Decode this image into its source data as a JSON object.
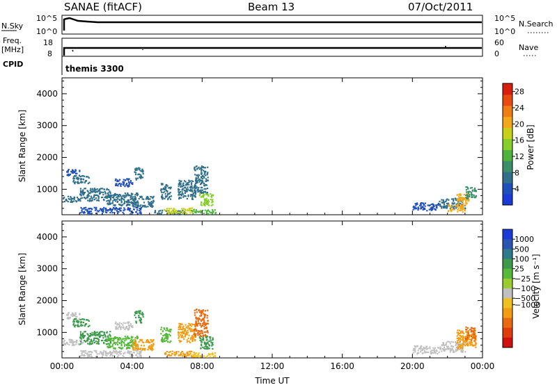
{
  "header": {
    "station": "SANAE (fitACF)",
    "beam": "Beam 13",
    "date": "07/Oct/2011"
  },
  "panels": {
    "nsky": {
      "left_label": "N.Sky",
      "right_label": "N.Search",
      "ticks_left": [
        "10^5",
        "10^0"
      ],
      "ticks_right": [
        "10^5",
        "10^0"
      ]
    },
    "freq": {
      "left_label_1": "Freq.",
      "left_label_2": "[MHz]",
      "right_label": "Nave",
      "ticks_left": [
        "18",
        "8"
      ],
      "ticks_right": [
        "60",
        "0"
      ]
    },
    "cpid": {
      "label": "CPID",
      "value": "themis 3300"
    }
  },
  "colors": {
    "power": [
      "#1a3bd6",
      "#1f4fb8",
      "#2f6f8a",
      "#3a8f6a",
      "#4db33c",
      "#86cf2a",
      "#c8d11a",
      "#f2a81a",
      "#f07c14",
      "#e84a0f",
      "#d81e0e"
    ],
    "velocity": [
      "#1a3bd6",
      "#2b55b5",
      "#2d7a8a",
      "#3c9a4c",
      "#55b93a",
      "#98cc30",
      "#c0c0c0",
      "#f0c020",
      "#f39c12",
      "#e86a10",
      "#e03c0c",
      "#d01010"
    ]
  },
  "chart_data": [
    {
      "type": "heatmap",
      "name": "power",
      "title": "",
      "xlabel": "",
      "ylabel": "Slant Range [km]",
      "xlim": [
        0,
        24
      ],
      "ylim": [
        200,
        4500
      ],
      "x_ticks": [
        "00:00",
        "04:00",
        "08:00",
        "12:00",
        "16:00",
        "20:00",
        "00:00"
      ],
      "y_ticks": [
        1000,
        2000,
        3000,
        4000
      ],
      "colorbar_label": "Power [dB]",
      "colorbar_ticks": [
        "4",
        "8",
        "12",
        "16",
        "20",
        "24",
        "28"
      ],
      "colorbar_range": [
        0,
        30
      ],
      "regions": [
        {
          "t0": 0.2,
          "t1": 1.0,
          "r0": 1450,
          "r1": 1650,
          "v": 4
        },
        {
          "t0": 0.6,
          "t1": 1.6,
          "r0": 1200,
          "r1": 1450,
          "v": 5
        },
        {
          "t0": 0.0,
          "t1": 1.0,
          "r0": 620,
          "r1": 800,
          "v": 6
        },
        {
          "t0": 1.0,
          "t1": 2.8,
          "r0": 650,
          "r1": 1050,
          "v": 5
        },
        {
          "t0": 2.5,
          "t1": 4.3,
          "r0": 500,
          "r1": 900,
          "v": 6
        },
        {
          "t0": 4.0,
          "t1": 5.2,
          "r0": 450,
          "r1": 800,
          "v": 7
        },
        {
          "t0": 4.1,
          "t1": 4.6,
          "r0": 1300,
          "r1": 1700,
          "v": 5
        },
        {
          "t0": 3.0,
          "t1": 4.0,
          "r0": 1100,
          "r1": 1350,
          "v": 4
        },
        {
          "t0": 1.0,
          "t1": 4.5,
          "r0": 250,
          "r1": 450,
          "v": 4
        },
        {
          "t0": 5.2,
          "t1": 7.0,
          "r0": 230,
          "r1": 360,
          "v": 5
        },
        {
          "t0": 5.8,
          "t1": 7.5,
          "r0": 260,
          "r1": 430,
          "v": 18
        },
        {
          "t0": 7.3,
          "t1": 8.8,
          "r0": 250,
          "r1": 380,
          "v": 12
        },
        {
          "t0": 6.6,
          "t1": 7.6,
          "r0": 700,
          "r1": 1300,
          "v": 6
        },
        {
          "t0": 7.5,
          "t1": 8.3,
          "r0": 900,
          "r1": 1750,
          "v": 7
        },
        {
          "t0": 7.8,
          "t1": 8.6,
          "r0": 500,
          "r1": 900,
          "v": 14
        },
        {
          "t0": 5.6,
          "t1": 6.2,
          "r0": 700,
          "r1": 1200,
          "v": 5
        },
        {
          "t0": 20.0,
          "t1": 21.5,
          "r0": 350,
          "r1": 600,
          "v": 4
        },
        {
          "t0": 21.5,
          "t1": 23.0,
          "r0": 400,
          "r1": 750,
          "v": 6
        },
        {
          "t0": 22.5,
          "t1": 23.2,
          "r0": 500,
          "r1": 900,
          "v": 20
        },
        {
          "t0": 23.0,
          "t1": 23.6,
          "r0": 700,
          "r1": 1100,
          "v": 10
        },
        {
          "t0": 22.0,
          "t1": 23.0,
          "r0": 300,
          "r1": 550,
          "v": 22
        }
      ]
    },
    {
      "type": "heatmap",
      "name": "velocity",
      "title": "",
      "xlabel": "Time UT",
      "ylabel": "Slant Range [km]",
      "xlim": [
        0,
        24
      ],
      "ylim": [
        200,
        4500
      ],
      "x_ticks": [
        "00:00",
        "04:00",
        "08:00",
        "12:00",
        "16:00",
        "20:00",
        "00:00"
      ],
      "y_ticks": [
        1000,
        2000,
        3000,
        4000
      ],
      "colorbar_label": "Velocity [m s⁻¹]",
      "colorbar_ticks": [
        "1000",
        "500",
        "100",
        "25",
        "−25",
        "−100",
        "−500",
        "−1000"
      ],
      "regions": [
        {
          "t0": 0.2,
          "t1": 1.0,
          "r0": 1450,
          "r1": 1650,
          "v": "gray"
        },
        {
          "t0": 0.6,
          "t1": 1.6,
          "r0": 1200,
          "r1": 1450,
          "v": "green"
        },
        {
          "t0": 0.0,
          "t1": 1.2,
          "r0": 620,
          "r1": 800,
          "v": "gray"
        },
        {
          "t0": 1.0,
          "t1": 2.8,
          "r0": 650,
          "r1": 1050,
          "v": "green"
        },
        {
          "t0": 2.5,
          "t1": 4.3,
          "r0": 500,
          "r1": 900,
          "v": "lime"
        },
        {
          "t0": 4.0,
          "t1": 5.2,
          "r0": 450,
          "r1": 800,
          "v": "orange"
        },
        {
          "t0": 4.1,
          "t1": 4.6,
          "r0": 1300,
          "r1": 1700,
          "v": "green"
        },
        {
          "t0": 3.0,
          "t1": 4.0,
          "r0": 1100,
          "r1": 1350,
          "v": "gray"
        },
        {
          "t0": 1.0,
          "t1": 4.5,
          "r0": 250,
          "r1": 450,
          "v": "gray"
        },
        {
          "t0": 5.8,
          "t1": 7.5,
          "r0": 260,
          "r1": 430,
          "v": "orange"
        },
        {
          "t0": 7.3,
          "t1": 8.8,
          "r0": 250,
          "r1": 380,
          "v": "yellow"
        },
        {
          "t0": 6.6,
          "t1": 7.6,
          "r0": 700,
          "r1": 1300,
          "v": "orange"
        },
        {
          "t0": 7.5,
          "t1": 8.3,
          "r0": 900,
          "r1": 1750,
          "v": "darkorange"
        },
        {
          "t0": 7.8,
          "t1": 8.6,
          "r0": 500,
          "r1": 900,
          "v": "green"
        },
        {
          "t0": 5.6,
          "t1": 6.2,
          "r0": 700,
          "r1": 1200,
          "v": "lime"
        },
        {
          "t0": 20.0,
          "t1": 21.5,
          "r0": 350,
          "r1": 600,
          "v": "gray"
        },
        {
          "t0": 21.5,
          "t1": 23.0,
          "r0": 400,
          "r1": 750,
          "v": "gray"
        },
        {
          "t0": 22.5,
          "t1": 23.6,
          "r0": 500,
          "r1": 1100,
          "v": "orange"
        },
        {
          "t0": 23.0,
          "t1": 23.6,
          "r0": 750,
          "r1": 1200,
          "v": "darkorange"
        }
      ]
    }
  ]
}
